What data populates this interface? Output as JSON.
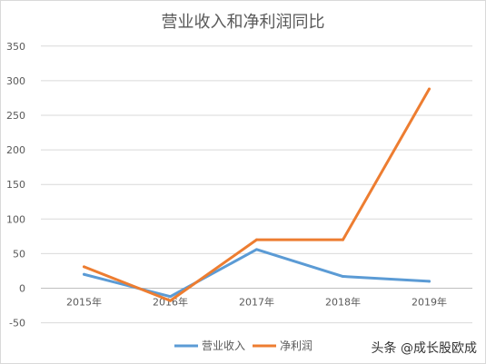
{
  "chart_data": {
    "type": "line",
    "title": "营业收入和净利润同比",
    "categories": [
      "2015年",
      "2016年",
      "2017年",
      "2018年",
      "2019年"
    ],
    "series": [
      {
        "name": "营业收入",
        "color": "#5b9bd5",
        "values": [
          20,
          -12,
          56,
          17,
          10
        ]
      },
      {
        "name": "净利润",
        "color": "#ed7d31",
        "values": [
          31,
          -18,
          70,
          70,
          288
        ]
      }
    ],
    "ylim": [
      -50,
      350
    ],
    "yticks": [
      "350",
      "300",
      "250",
      "200",
      "150",
      "100",
      "50",
      "0",
      "-50"
    ],
    "grid": true,
    "legend": "bottom"
  },
  "watermark": "头条 @成长股欧成"
}
